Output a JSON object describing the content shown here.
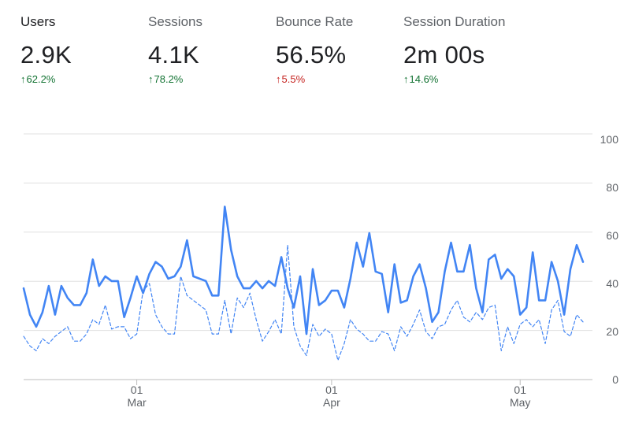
{
  "metrics": [
    {
      "label": "Users",
      "value": "2.9K",
      "change": "62.2%",
      "direction": "up",
      "sentiment": "positive",
      "color": "#137333"
    },
    {
      "label": "Sessions",
      "value": "4.1K",
      "change": "78.2%",
      "direction": "up",
      "sentiment": "positive",
      "color": "#137333"
    },
    {
      "label": "Bounce Rate",
      "value": "56.5%",
      "change": "5.5%",
      "direction": "up",
      "sentiment": "negative",
      "color": "#c5221f"
    },
    {
      "label": "Session Duration",
      "value": "2m 00s",
      "change": "14.6%",
      "direction": "up",
      "sentiment": "positive",
      "color": "#137333"
    }
  ],
  "chart_data": {
    "type": "line",
    "title": "",
    "xlabel": "",
    "ylabel": "",
    "ylim": [
      0,
      100
    ],
    "yticks": [
      0,
      20,
      40,
      60,
      80,
      100
    ],
    "xticks": [
      {
        "index": 18,
        "day": "01",
        "month": "Mar"
      },
      {
        "index": 49,
        "day": "01",
        "month": "Apr"
      },
      {
        "index": 79,
        "day": "01",
        "month": "May"
      }
    ],
    "grid": true,
    "series": [
      {
        "style": "solid",
        "color": "#4285f4",
        "values": [
          38,
          27,
          22,
          28,
          39,
          27,
          39,
          34,
          31,
          31,
          36,
          50,
          39,
          43,
          41,
          41,
          26,
          34,
          43,
          36,
          44,
          49,
          47,
          42,
          43,
          47,
          58,
          43,
          42,
          41,
          35,
          35,
          72,
          54,
          43,
          38,
          38,
          41,
          38,
          41,
          39,
          51,
          38,
          30,
          43,
          19,
          46,
          31,
          33,
          37,
          37,
          30,
          42,
          57,
          47,
          61,
          45,
          44,
          28,
          48,
          32,
          33,
          43,
          48,
          38,
          24,
          28,
          45,
          57,
          45,
          45,
          56,
          38,
          28,
          50,
          52,
          42,
          46,
          43,
          27,
          30,
          53,
          33,
          33,
          49,
          41,
          27,
          46,
          56,
          49
        ]
      },
      {
        "style": "dashed",
        "color": "#4285f4",
        "values": [
          18,
          14,
          12,
          17,
          15,
          18,
          20,
          22,
          16,
          16,
          19,
          25,
          23,
          31,
          21,
          22,
          22,
          17,
          19,
          37,
          40,
          27,
          22,
          19,
          19,
          43,
          35,
          33,
          31,
          29,
          19,
          19,
          33,
          19,
          34,
          30,
          36,
          25,
          16,
          20,
          25,
          19,
          56,
          22,
          14,
          10,
          23,
          18,
          21,
          19,
          8,
          15,
          25,
          21,
          19,
          16,
          16,
          20,
          19,
          12,
          22,
          18,
          23,
          29,
          20,
          17,
          22,
          23,
          29,
          33,
          26,
          24,
          28,
          25,
          30,
          31,
          12,
          22,
          15,
          23,
          25,
          22,
          25,
          15,
          29,
          33,
          20,
          18,
          27,
          24
        ]
      }
    ]
  }
}
